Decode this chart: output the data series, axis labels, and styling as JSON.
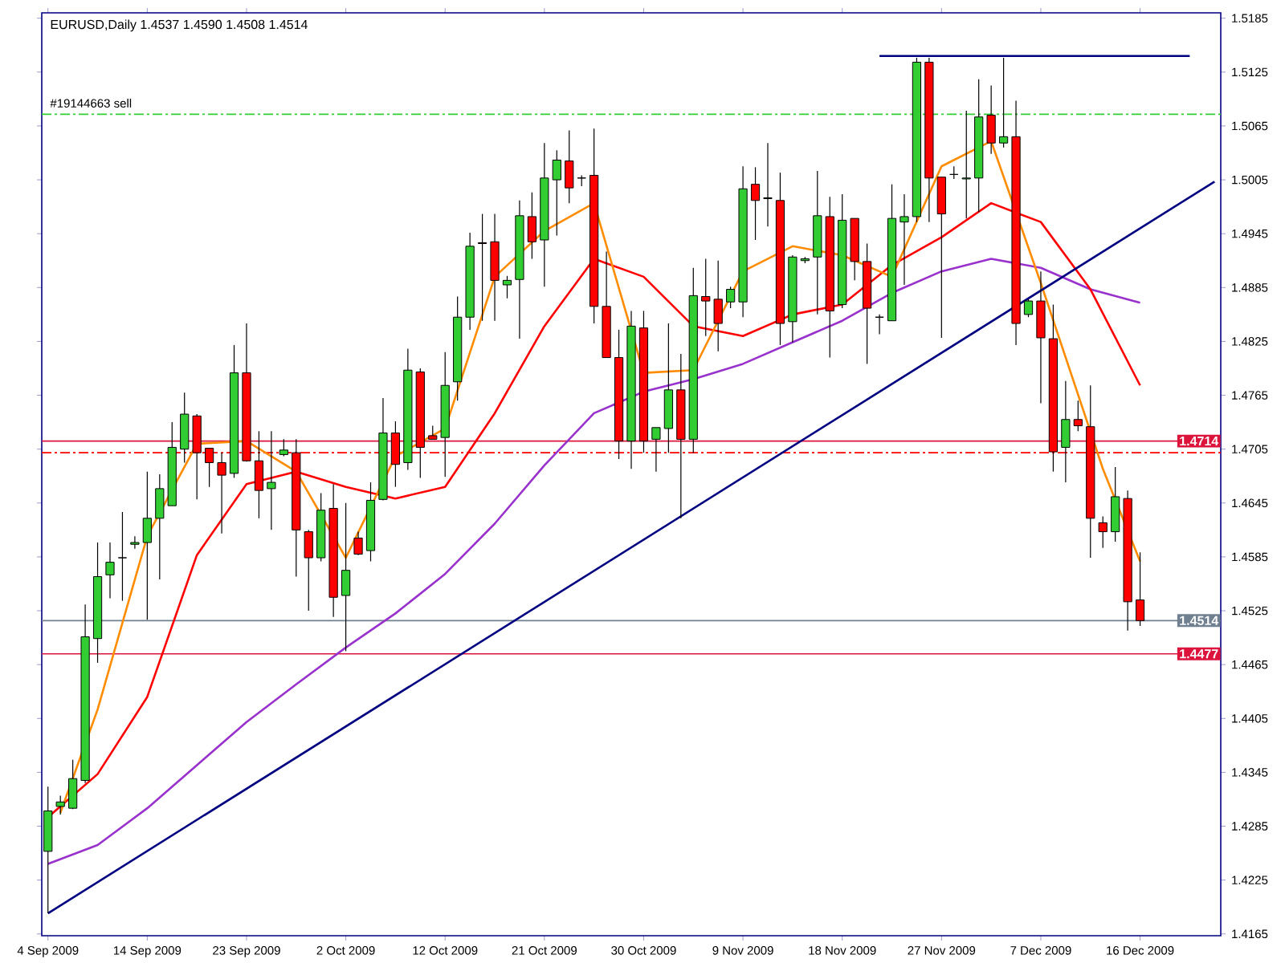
{
  "chart_data": {
    "type": "candlestick",
    "title": "EURUSD,Daily  1.4537 1.4590 1.4508 1.4514",
    "categories": [
      "4 Sep 2009",
      null,
      null,
      null,
      null,
      null,
      null,
      null,
      "14 Sep 2009",
      null,
      null,
      null,
      null,
      null,
      null,
      null,
      "23 Sep 2009",
      null,
      null,
      null,
      null,
      null,
      null,
      null,
      "2 Oct 2009",
      null,
      null,
      null,
      null,
      null,
      null,
      null,
      "12 Oct 2009",
      null,
      null,
      null,
      null,
      null,
      null,
      null,
      "21 Oct 2009",
      null,
      null,
      null,
      null,
      null,
      null,
      null,
      "30 Oct 2009",
      null,
      null,
      null,
      null,
      null,
      null,
      null,
      "9 Nov 2009",
      null,
      null,
      null,
      null,
      null,
      null,
      null,
      "18 Nov 2009",
      null,
      null,
      null,
      null,
      null,
      null,
      null,
      "27 Nov 2009",
      null,
      null,
      null,
      null,
      null,
      null,
      null,
      "7 Dec 2009",
      null,
      null,
      null,
      null,
      null,
      null,
      null,
      "16 Dec 2009",
      null,
      null,
      null,
      null,
      null,
      null
    ],
    "ohlc": [
      [
        1.4257,
        1.4329,
        1.4188,
        1.4302
      ],
      [
        1.4307,
        1.4319,
        1.4298,
        1.4312
      ],
      [
        1.4305,
        1.4359,
        1.4304,
        1.4338
      ],
      [
        1.4336,
        1.4532,
        1.4333,
        1.4496
      ],
      [
        1.4494,
        1.4601,
        1.4467,
        1.4563
      ],
      [
        1.4565,
        1.4601,
        1.4539,
        1.4579
      ],
      [
        1.4584,
        1.4635,
        1.4536,
        1.4584
      ],
      [
        1.4599,
        1.4608,
        1.4594,
        1.4601
      ],
      [
        1.4601,
        1.468,
        1.4515,
        1.4628
      ],
      [
        1.4628,
        1.4677,
        1.456,
        1.4661
      ],
      [
        1.4642,
        1.4735,
        1.4642,
        1.4707
      ],
      [
        1.4705,
        1.4768,
        1.469,
        1.4744
      ],
      [
        1.4742,
        1.4744,
        1.4649,
        1.4701
      ],
      [
        1.4706,
        1.4706,
        1.4663,
        1.469
      ],
      [
        1.469,
        1.4701,
        1.4611,
        1.4676
      ],
      [
        1.4678,
        1.4821,
        1.4673,
        1.479
      ],
      [
        1.479,
        1.4845,
        1.4691,
        1.4692
      ],
      [
        1.4692,
        1.4725,
        1.4628,
        1.4659
      ],
      [
        1.4661,
        1.4725,
        1.4615,
        1.4668
      ],
      [
        1.4699,
        1.4716,
        1.4697,
        1.4704
      ],
      [
        1.4701,
        1.4716,
        1.4563,
        1.4615
      ],
      [
        1.4613,
        1.4615,
        1.4525,
        1.4584
      ],
      [
        1.4584,
        1.4656,
        1.458,
        1.4637
      ],
      [
        1.4639,
        1.4666,
        1.4518,
        1.454
      ],
      [
        1.4542,
        1.4645,
        1.448,
        1.457
      ],
      [
        1.4606,
        1.4613,
        1.4587,
        1.4588
      ],
      [
        1.4592,
        1.4668,
        1.458,
        1.4648
      ],
      [
        1.4649,
        1.4762,
        1.4648,
        1.4723
      ],
      [
        1.4723,
        1.4736,
        1.4663,
        1.4688
      ],
      [
        1.469,
        1.4817,
        1.4682,
        1.4793
      ],
      [
        1.4791,
        1.4795,
        1.4673,
        1.4707
      ],
      [
        1.472,
        1.4731,
        1.4716,
        1.4716
      ],
      [
        1.4718,
        1.4813,
        1.4674,
        1.4776
      ],
      [
        1.478,
        1.4875,
        1.4759,
        1.4852
      ],
      [
        1.4852,
        1.4946,
        1.4838,
        1.4931
      ],
      [
        1.4935,
        1.4967,
        1.4848,
        1.4934
      ],
      [
        1.4936,
        1.4967,
        1.4848,
        1.4893
      ],
      [
        1.4888,
        1.4898,
        1.4873,
        1.4893
      ],
      [
        1.4894,
        1.4982,
        1.4828,
        1.4965
      ],
      [
        1.4964,
        1.4991,
        1.4917,
        1.4936
      ],
      [
        1.4938,
        1.5046,
        1.4886,
        1.5007
      ],
      [
        1.5005,
        1.5038,
        1.4943,
        1.5027
      ],
      [
        1.5026,
        1.506,
        1.4979,
        1.4996
      ],
      [
        1.5007,
        1.501,
        1.4998,
        1.5007
      ],
      [
        1.501,
        1.5062,
        1.4845,
        1.4864
      ],
      [
        1.4864,
        1.4925,
        1.4807,
        1.4807
      ],
      [
        1.4807,
        1.4838,
        1.4694,
        1.4714
      ],
      [
        1.4714,
        1.4859,
        1.4683,
        1.4842
      ],
      [
        1.484,
        1.4859,
        1.4701,
        1.4714
      ],
      [
        1.4716,
        1.4729,
        1.468,
        1.4729
      ],
      [
        1.4728,
        1.4845,
        1.4701,
        1.4771
      ],
      [
        1.4771,
        1.4811,
        1.4628,
        1.4716
      ],
      [
        1.4716,
        1.4907,
        1.4701,
        1.4876
      ],
      [
        1.4875,
        1.4917,
        1.4831,
        1.487
      ],
      [
        1.4872,
        1.4915,
        1.4814,
        1.4845
      ],
      [
        1.4869,
        1.4886,
        1.4862,
        1.4883
      ],
      [
        1.4869,
        1.502,
        1.4852,
        1.4995
      ],
      [
        1.5,
        1.5019,
        1.4938,
        1.4982
      ],
      [
        1.4984,
        1.5046,
        1.4953,
        1.4985
      ],
      [
        1.4982,
        1.5013,
        1.4821,
        1.4845
      ],
      [
        1.4847,
        1.4921,
        1.4824,
        1.4919
      ],
      [
        1.4915,
        1.4919,
        1.4912,
        1.4917
      ],
      [
        1.4919,
        1.5015,
        1.4855,
        1.4965
      ],
      [
        1.4964,
        1.4986,
        1.4807,
        1.4859
      ],
      [
        1.4866,
        1.4989,
        1.4862,
        1.496
      ],
      [
        1.4962,
        1.4962,
        1.4893,
        1.4914
      ],
      [
        1.4914,
        1.4934,
        1.48,
        1.4862
      ],
      [
        1.4852,
        1.4855,
        1.4833,
        1.4852
      ],
      [
        1.4848,
        1.5,
        1.4848,
        1.4962
      ],
      [
        1.4958,
        1.4989,
        1.4888,
        1.4964
      ],
      [
        1.4964,
        1.5141,
        1.4958,
        1.5136
      ],
      [
        1.5136,
        1.5141,
        1.4958,
        1.5007
      ],
      [
        1.5008,
        1.5008,
        1.4829,
        1.4967
      ],
      [
        1.5011,
        1.502,
        1.5006,
        1.5011
      ],
      [
        1.5006,
        1.5082,
        1.4962,
        1.5007
      ],
      [
        1.5007,
        1.5117,
        1.4969,
        1.5075
      ],
      [
        1.5077,
        1.511,
        1.5034,
        1.5046
      ],
      [
        1.5046,
        1.5141,
        1.5041,
        1.5053
      ],
      [
        1.5053,
        1.5093,
        1.4821,
        1.4845
      ],
      [
        1.4855,
        1.4872,
        1.4852,
        1.487
      ],
      [
        1.487,
        1.4903,
        1.4756,
        1.4829
      ],
      [
        1.4828,
        1.4866,
        1.468,
        1.4702
      ],
      [
        1.4707,
        1.4781,
        1.4668,
        1.4738
      ],
      [
        1.4738,
        1.4759,
        1.4725,
        1.4731
      ],
      [
        1.473,
        1.4776,
        1.4584,
        1.4628
      ],
      [
        1.4623,
        1.463,
        1.4595,
        1.4613
      ],
      [
        1.4613,
        1.4685,
        1.4602,
        1.4652
      ],
      [
        1.465,
        1.4659,
        1.4503,
        1.4535
      ],
      [
        1.4537,
        1.459,
        1.4508,
        1.4514
      ],
      null,
      null,
      null,
      null,
      null,
      null
    ],
    "colors": [
      "#32cd32",
      "#32cd32",
      "#32cd32",
      "#32cd32",
      "#32cd32",
      "#32cd32",
      "#000000",
      "#32cd32",
      "#32cd32",
      "#32cd32",
      "#32cd32",
      "#32cd32",
      "#ff0000",
      "#ff0000",
      "#ff0000",
      "#32cd32",
      "#ff0000",
      "#ff0000",
      "#32cd32",
      "#32cd32",
      "#ff0000",
      "#ff0000",
      "#32cd32",
      "#ff0000",
      "#32cd32",
      "#ff0000",
      "#32cd32",
      "#32cd32",
      "#ff0000",
      "#32cd32",
      "#ff0000",
      "#ff0000",
      "#32cd32",
      "#32cd32",
      "#32cd32",
      "#ff0000",
      "#ff0000",
      "#32cd32",
      "#32cd32",
      "#ff0000",
      "#32cd32",
      "#32cd32",
      "#ff0000",
      "#000000",
      "#ff0000",
      "#ff0000",
      "#ff0000",
      "#32cd32",
      "#ff0000",
      "#32cd32",
      "#32cd32",
      "#ff0000",
      "#32cd32",
      "#ff0000",
      "#ff0000",
      "#32cd32",
      "#32cd32",
      "#ff0000",
      "#32cd32",
      "#ff0000",
      "#32cd32",
      "#32cd32",
      "#32cd32",
      "#ff0000",
      "#32cd32",
      "#ff0000",
      "#ff0000",
      "#000000",
      "#32cd32",
      "#32cd32",
      "#32cd32",
      "#ff0000",
      "#ff0000",
      "#000000",
      "#32cd32",
      "#32cd32",
      "#ff0000",
      "#32cd32",
      "#ff0000",
      "#32cd32",
      "#ff0000",
      "#ff0000",
      "#32cd32",
      "#ff0000",
      "#ff0000",
      "#ff0000",
      "#32cd32",
      "#ff0000",
      "#ff0000",
      null,
      null,
      null,
      null,
      null,
      null
    ],
    "series": [
      {
        "type": "line",
        "color": "#9932cc",
        "marker": "none",
        "line_style": "solid",
        "values": [
          1.4243,
          null,
          null,
          null,
          1.4264,
          null,
          null,
          null,
          1.4305,
          null,
          null,
          null,
          1.4353,
          null,
          null,
          null,
          1.4401,
          null,
          null,
          null,
          1.4443,
          null,
          null,
          null,
          1.4484,
          null,
          null,
          null,
          1.4522,
          null,
          null,
          null,
          1.4566,
          null,
          null,
          null,
          1.4622,
          null,
          null,
          null,
          1.4687,
          null,
          null,
          null,
          1.4745,
          null,
          null,
          null,
          1.4769,
          null,
          null,
          null,
          1.4783,
          null,
          null,
          null,
          1.48,
          null,
          null,
          null,
          1.4824,
          null,
          null,
          null,
          1.4848,
          null,
          null,
          null,
          1.4879,
          null,
          null,
          null,
          1.4903,
          null,
          null,
          null,
          1.4917,
          null,
          null,
          null,
          1.4907,
          null,
          null,
          null,
          1.4883,
          null,
          null,
          null,
          1.4868,
          null,
          null,
          null,
          null,
          null,
          null
        ]
      },
      {
        "type": "line",
        "color": "#ff0000",
        "marker": "none",
        "line_style": "solid",
        "values": [
          1.4295,
          null,
          null,
          null,
          1.4343,
          null,
          null,
          null,
          1.4429,
          null,
          null,
          null,
          1.4587,
          null,
          null,
          null,
          1.4666,
          null,
          null,
          null,
          1.468,
          null,
          null,
          null,
          1.4663,
          null,
          null,
          null,
          1.465,
          null,
          null,
          null,
          1.4663,
          null,
          null,
          null,
          1.4745,
          null,
          null,
          null,
          1.4842,
          null,
          null,
          null,
          1.4917,
          null,
          null,
          null,
          1.4897,
          null,
          null,
          null,
          1.4842,
          null,
          null,
          null,
          1.4831,
          null,
          null,
          null,
          1.4855,
          null,
          null,
          null,
          1.4866,
          null,
          null,
          null,
          1.491,
          null,
          null,
          null,
          1.4941,
          null,
          null,
          null,
          1.4979,
          null,
          null,
          null,
          1.4958,
          null,
          null,
          null,
          1.4883,
          null,
          null,
          null,
          1.4776,
          null,
          null,
          null,
          null,
          null,
          null
        ]
      },
      {
        "type": "line",
        "color": "#ff8c00",
        "marker": "none",
        "line_style": "solid",
        "values": [
          null,
          1.43,
          null,
          null,
          1.4415,
          null,
          null,
          null,
          1.4608,
          null,
          null,
          null,
          1.4711,
          null,
          null,
          null,
          1.4714,
          null,
          null,
          null,
          1.468,
          null,
          null,
          null,
          1.4584,
          null,
          null,
          null,
          1.4697,
          null,
          null,
          null,
          1.4728,
          null,
          null,
          null,
          1.4897,
          null,
          null,
          null,
          1.4948,
          null,
          null,
          null,
          1.4979,
          null,
          null,
          null,
          1.479,
          null,
          null,
          null,
          1.4793,
          null,
          null,
          null,
          1.4903,
          null,
          null,
          null,
          1.4931,
          null,
          null,
          null,
          1.4921,
          null,
          null,
          null,
          1.4897,
          null,
          null,
          null,
          1.502,
          null,
          null,
          null,
          1.5048,
          null,
          null,
          null,
          1.489,
          null,
          null,
          null,
          null,
          1.4683,
          null,
          null,
          1.458,
          null,
          null,
          null,
          null,
          null,
          null
        ]
      },
      {
        "type": "line",
        "color": "#000080",
        "marker": "none",
        "line_style": "solid",
        "values": [
          1.4188,
          null,
          null,
          null,
          null,
          null,
          null,
          null,
          null,
          null,
          null,
          null,
          null,
          null,
          null,
          null,
          null,
          null,
          null,
          null,
          null,
          null,
          null,
          null,
          null,
          null,
          null,
          null,
          null,
          null,
          null,
          null,
          null,
          null,
          null,
          null,
          null,
          null,
          null,
          null,
          null,
          null,
          null,
          null,
          null,
          null,
          null,
          null,
          null,
          null,
          null,
          null,
          null,
          null,
          null,
          null,
          null,
          null,
          null,
          null,
          null,
          null,
          null,
          null,
          null,
          null,
          null,
          null,
          null,
          null,
          null,
          null,
          null,
          null,
          null,
          null,
          null,
          null,
          null,
          null,
          null,
          null,
          null,
          null,
          null,
          null,
          null,
          null,
          null,
          null,
          null,
          null,
          null,
          null,
          1.5003
        ]
      },
      {
        "type": "line",
        "color": "#000080",
        "marker": "none",
        "line_style": "solid",
        "values": [
          null,
          null,
          null,
          null,
          null,
          null,
          null,
          null,
          null,
          null,
          null,
          null,
          null,
          null,
          null,
          null,
          null,
          null,
          null,
          null,
          null,
          null,
          null,
          null,
          null,
          null,
          null,
          null,
          null,
          null,
          null,
          null,
          null,
          null,
          null,
          null,
          null,
          null,
          null,
          null,
          null,
          null,
          null,
          null,
          null,
          null,
          null,
          null,
          null,
          null,
          null,
          null,
          null,
          null,
          null,
          null,
          null,
          null,
          null,
          null,
          null,
          null,
          null,
          null,
          null,
          null,
          null,
          1.5143,
          null,
          null,
          null,
          null,
          null,
          null,
          null,
          null,
          null,
          null,
          null,
          null,
          null,
          null,
          null,
          null,
          null,
          null,
          null,
          null,
          null,
          null,
          null,
          null,
          1.5143,
          null,
          null
        ]
      }
    ],
    "ref_lines": [
      {
        "axis": "y",
        "value": 1.5078,
        "label": "#19144663 sell",
        "color": "#32cd32",
        "line_style": "dashed"
      },
      {
        "axis": "y",
        "value": 1.4714,
        "label": "1.4714",
        "color": "#dc143c",
        "line_style": "solid"
      },
      {
        "axis": "y",
        "value": 1.4701,
        "color": "#ff0000",
        "line_style": "dashed"
      },
      {
        "axis": "y",
        "value": 1.4514,
        "label": "1.4514",
        "color": "#708090",
        "line_style": "solid"
      },
      {
        "axis": "y",
        "value": 1.4477,
        "label": "1.4477",
        "color": "#dc143c",
        "line_style": "solid"
      }
    ],
    "ylim": [
      1.4163,
      1.5191
    ],
    "yticks": [
      1.5185,
      1.5125,
      1.5065,
      1.5005,
      1.4945,
      1.4885,
      1.4825,
      1.4765,
      1.4705,
      1.4645,
      1.4585,
      1.4525,
      1.4465,
      1.4405,
      1.4345,
      1.4285,
      1.4225,
      1.4165
    ],
    "grid": false
  }
}
